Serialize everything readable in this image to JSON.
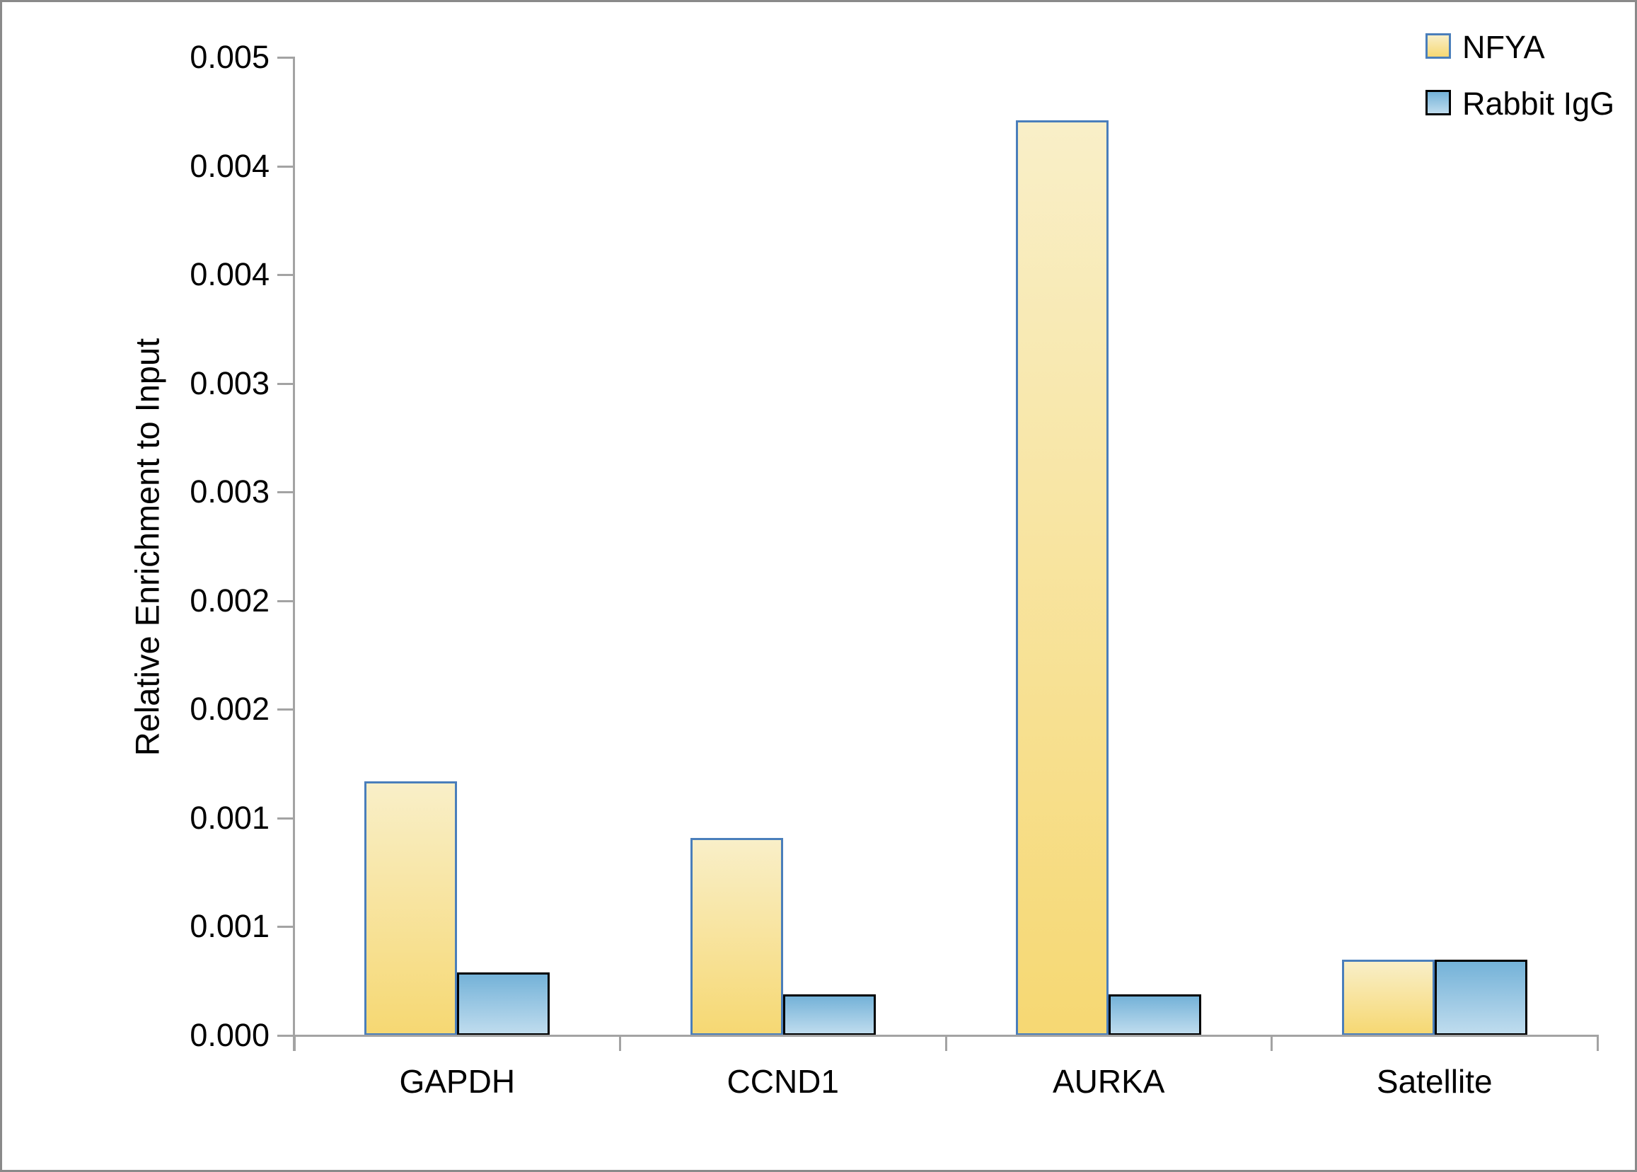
{
  "figure": {
    "background": "#FFFFFF",
    "frame_color": "#8A8A8A",
    "axis_color": "#A3A3A3",
    "text_color": "#000000"
  },
  "chart_data": {
    "type": "bar",
    "title": "",
    "xlabel": "",
    "ylabel": "Relative Enrichment to Input",
    "categories": [
      "GAPDH",
      "CCND1",
      "AURKA",
      "Satellite"
    ],
    "series": [
      {
        "name": "NFYA",
        "values": [
          0.00117,
          0.00091,
          0.00421,
          0.00035
        ],
        "fill_top": "#F9EFC8",
        "fill_bottom": "#F6D873",
        "border": "#4A7EBB"
      },
      {
        "name": "Rabbit IgG",
        "values": [
          0.00029,
          0.00019,
          0.00019,
          0.00035
        ],
        "fill_top": "#74B2D8",
        "fill_bottom": "#BFDCEE",
        "border": "#000000"
      }
    ],
    "ylim": [
      0,
      0.0045
    ],
    "ytick_step": 0.0005,
    "ytick_labels": [
      "0.000",
      "0.001",
      "0.001",
      "0.002",
      "0.002",
      "0.003",
      "0.003",
      "0.004",
      "0.004",
      "0.005"
    ],
    "grid": false,
    "legend_position": "top-right"
  }
}
